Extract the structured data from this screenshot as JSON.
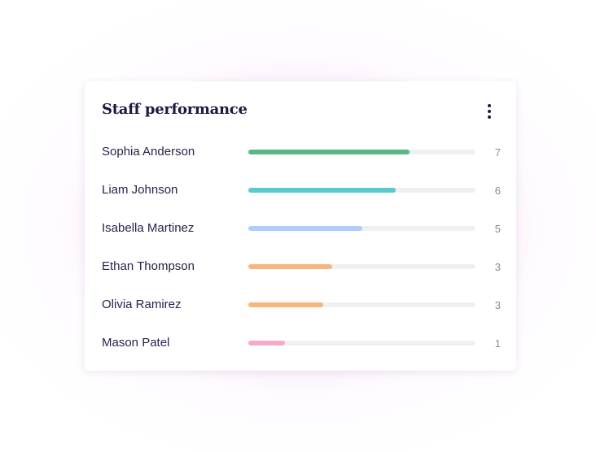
{
  "card": {
    "title": "Staff performance",
    "menu_icon": "more-vertical-icon"
  },
  "scale_max": 9,
  "staff": [
    {
      "name": "Sophia Anderson",
      "value": 7,
      "fill": 0.71,
      "color": "#57b886"
    },
    {
      "name": "Liam Johnson",
      "value": 6,
      "fill": 0.65,
      "color": "#5ac9cc"
    },
    {
      "name": "Isabella Martinez",
      "value": 5,
      "fill": 0.5,
      "color": "#aecdf7"
    },
    {
      "name": "Ethan Thompson",
      "value": 3,
      "fill": 0.37,
      "color": "#f8b67d"
    },
    {
      "name": "Olivia Ramirez",
      "value": 3,
      "fill": 0.33,
      "color": "#f8b67d"
    },
    {
      "name": "Mason Patel",
      "value": 1,
      "fill": 0.16,
      "color": "#f7a9c9"
    }
  ]
}
